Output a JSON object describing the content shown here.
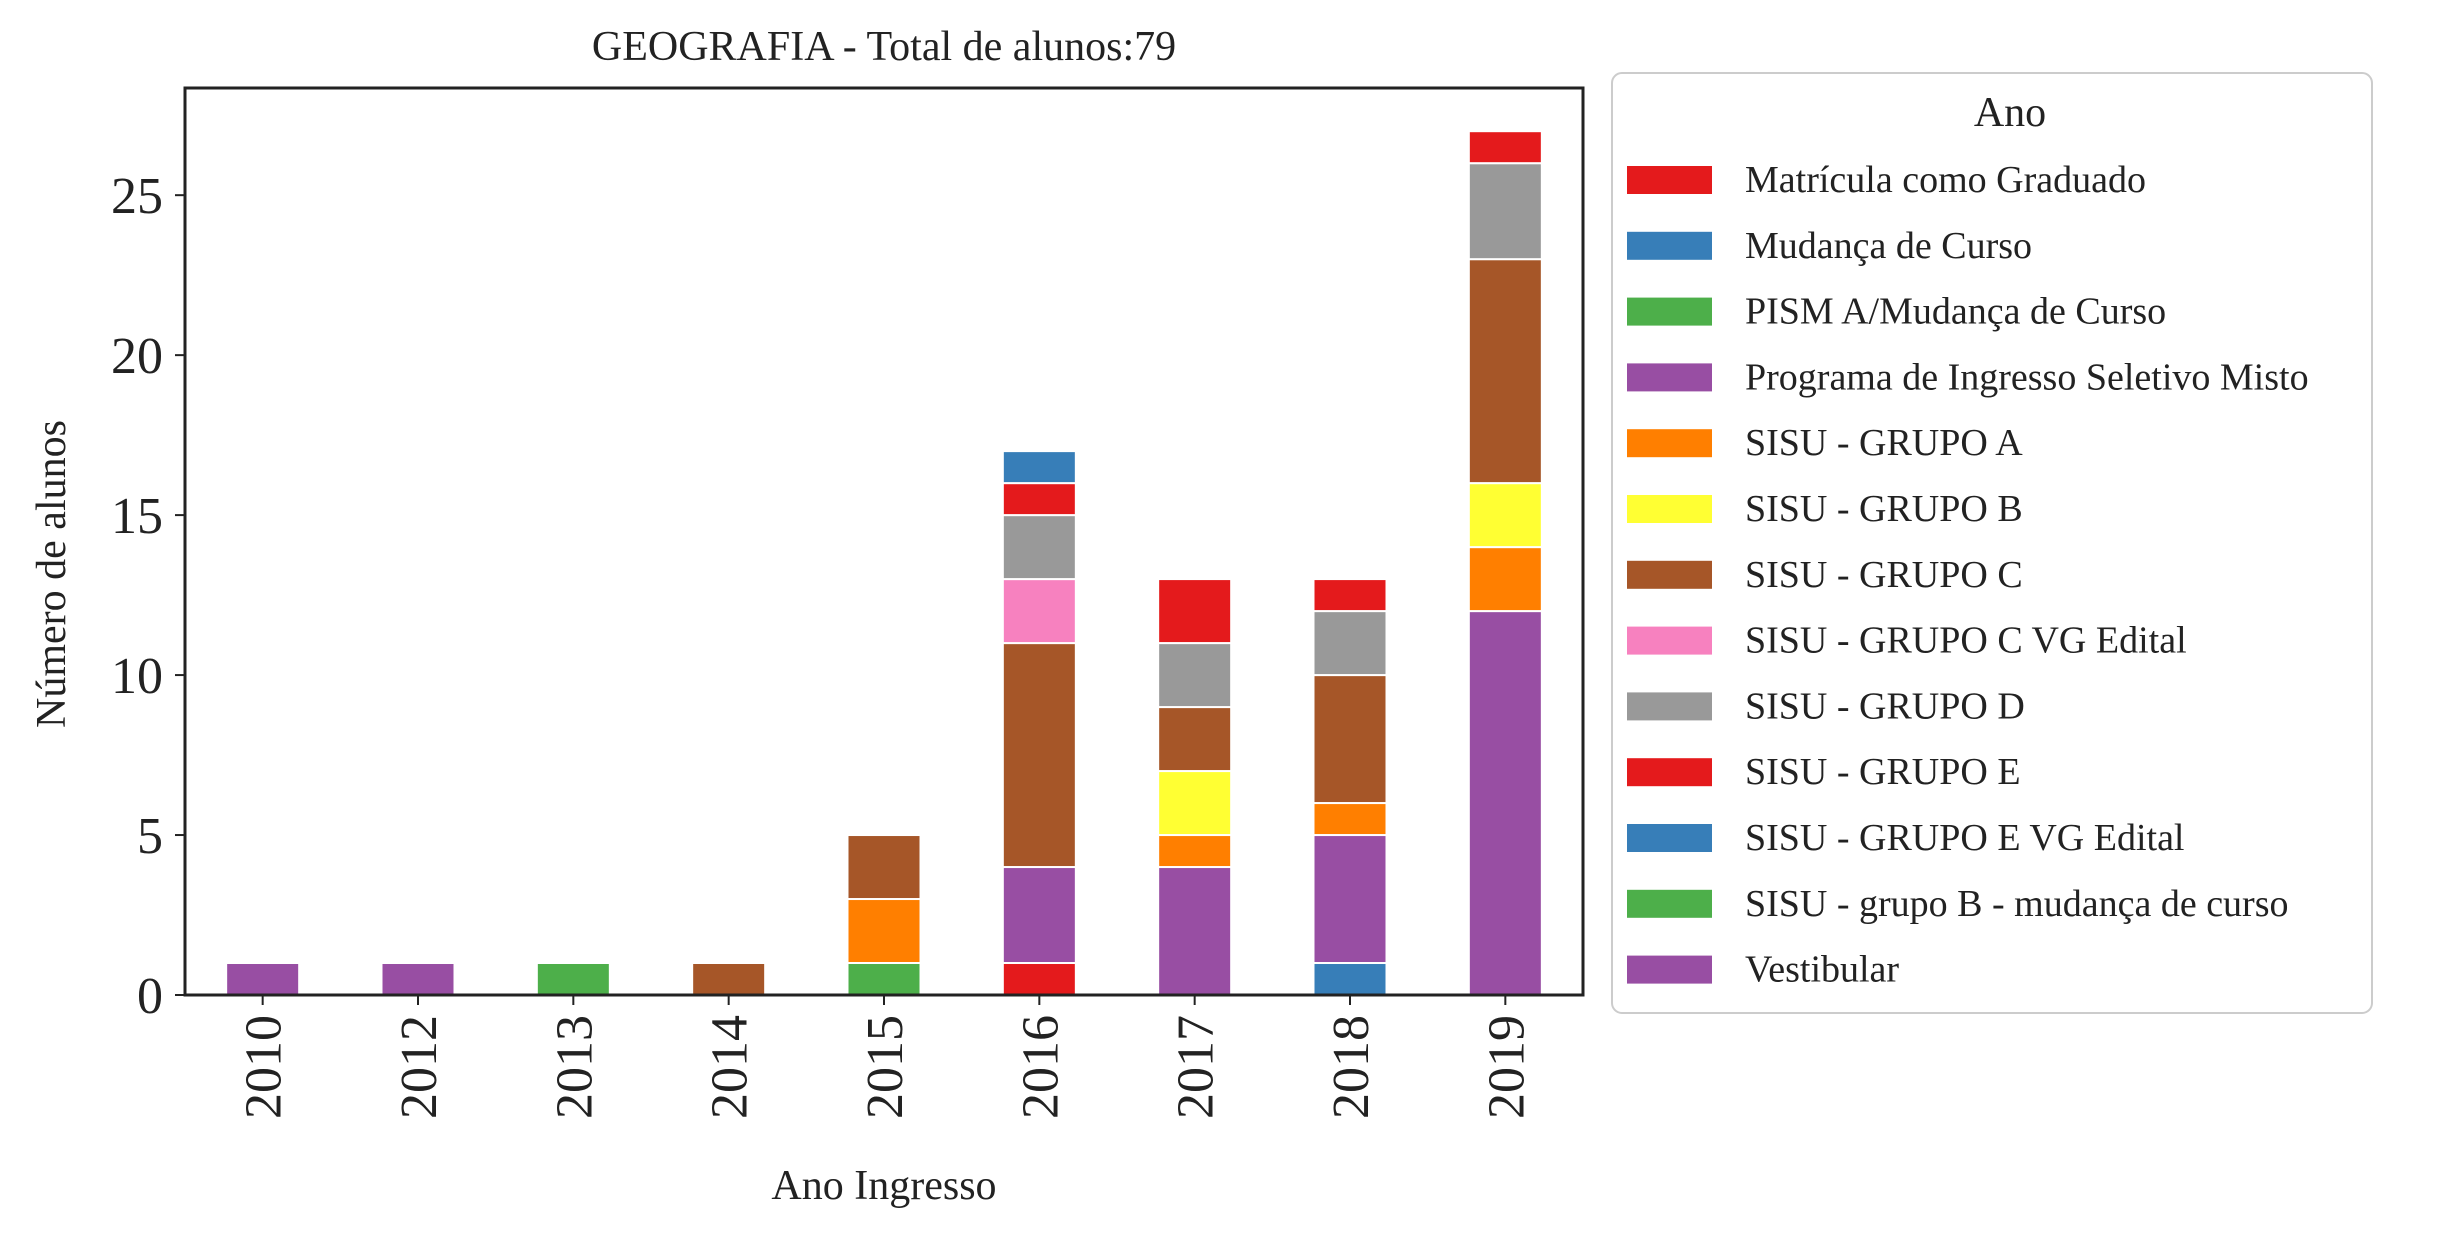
{
  "chart_data": {
    "type": "bar",
    "stacked": true,
    "title": "GEOGRAFIA - Total de alunos:79",
    "xlabel": "Ano Ingresso",
    "ylabel": "Número de alunos",
    "ylim": [
      0,
      28.35
    ],
    "yticks": [
      0,
      5,
      10,
      15,
      20,
      25
    ],
    "grid": false,
    "legend": {
      "title": "Ano",
      "placement": "outside-right"
    },
    "categories": [
      "2010",
      "2012",
      "2013",
      "2014",
      "2015",
      "2016",
      "2017",
      "2018",
      "2019"
    ],
    "series": [
      {
        "name": "Matrícula como Graduado",
        "color": "#e41a1c",
        "values": [
          0,
          0,
          0,
          0,
          0,
          1,
          0,
          0,
          0
        ]
      },
      {
        "name": "Mudança de Curso",
        "color": "#377eb8",
        "values": [
          0,
          0,
          0,
          0,
          0,
          0,
          0,
          1,
          0
        ]
      },
      {
        "name": "PISM A/Mudança de Curso",
        "color": "#4daf4a",
        "values": [
          0,
          0,
          1,
          0,
          1,
          0,
          0,
          0,
          0
        ]
      },
      {
        "name": "Programa de Ingresso Seletivo Misto",
        "color": "#984ea3",
        "values": [
          0,
          0,
          0,
          0,
          0,
          3,
          4,
          4,
          12
        ]
      },
      {
        "name": "SISU - GRUPO A",
        "color": "#ff7f00",
        "values": [
          0,
          0,
          0,
          0,
          2,
          0,
          1,
          1,
          2
        ]
      },
      {
        "name": "SISU - GRUPO B",
        "color": "#ffff33",
        "values": [
          0,
          0,
          0,
          0,
          0,
          0,
          2,
          0,
          2
        ]
      },
      {
        "name": "SISU - GRUPO C",
        "color": "#a65628",
        "values": [
          0,
          0,
          0,
          1,
          2,
          7,
          2,
          4,
          7
        ]
      },
      {
        "name": "SISU - GRUPO C VG Edital",
        "color": "#f781bf",
        "values": [
          0,
          0,
          0,
          0,
          0,
          2,
          0,
          0,
          0
        ]
      },
      {
        "name": "SISU - GRUPO D",
        "color": "#999999",
        "values": [
          0,
          0,
          0,
          0,
          0,
          2,
          2,
          2,
          3
        ]
      },
      {
        "name": "SISU - GRUPO E",
        "color": "#e41a1c",
        "values": [
          0,
          0,
          0,
          0,
          0,
          1,
          2,
          1,
          1
        ]
      },
      {
        "name": "SISU - GRUPO E VG Edital",
        "color": "#377eb8",
        "values": [
          0,
          0,
          0,
          0,
          0,
          1,
          0,
          0,
          0
        ]
      },
      {
        "name": "SISU - grupo B - mudança de curso",
        "color": "#4daf4a",
        "values": [
          0,
          0,
          0,
          0,
          0,
          0,
          0,
          0,
          0
        ]
      },
      {
        "name": "Vestibular",
        "color": "#984ea3",
        "values": [
          1,
          1,
          0,
          0,
          0,
          0,
          0,
          0,
          0
        ]
      }
    ]
  }
}
